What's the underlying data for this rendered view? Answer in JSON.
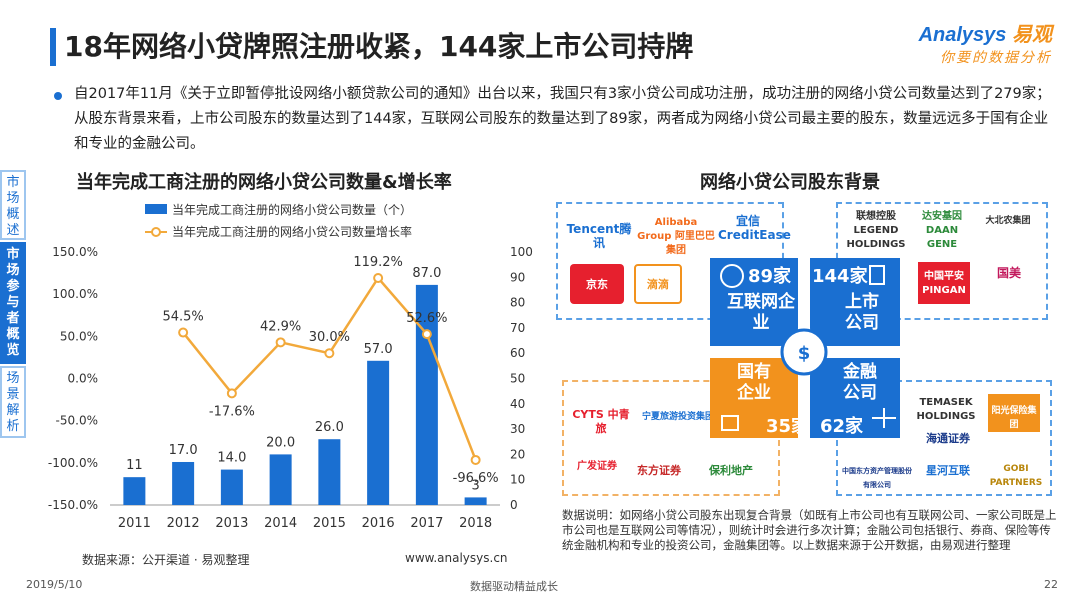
{
  "page": {
    "title": "18年网络小贷牌照注册收紧，144家上市公司持牌",
    "logo_main": "Analysys",
    "logo_cn": "易观",
    "logo_slogan": "你要的数据分析",
    "intro": "自2017年11月《关于立即暂停批设网络小额贷款公司的通知》出台以来，我国只有3家小贷公司成功注册，成功注册的网络小贷公司数量达到了279家；从股东背景来看，上市公司股东的数量达到了144家，互联网公司股东的数量达到了89家，两者成为网络小贷公司最主要的股东，数量远远多于国有企业和专业的金融公司。",
    "side_tabs": [
      "市场概述",
      "市场参与者概览",
      "场景解析"
    ],
    "source": "数据来源：公开渠道 · 易观整理",
    "url": "www.analysys.cn",
    "date": "2019/5/10",
    "footer_center": "数据驱动精益成长",
    "page_number": "22"
  },
  "chart_data": {
    "type": "bar",
    "title": "当年完成工商注册的网络小贷公司数量&增长率",
    "categories": [
      "2011",
      "2012",
      "2013",
      "2014",
      "2015",
      "2016",
      "2017",
      "2018"
    ],
    "series": [
      {
        "name": "当年完成工商注册的网络小贷公司数量（个）",
        "type": "bar",
        "axis": "right",
        "values": [
          11,
          17,
          14,
          20,
          26,
          57,
          87,
          3
        ],
        "labels": [
          "11",
          "17.0",
          "14.0",
          "20.0",
          "26.0",
          "57.0",
          "87.0",
          "3"
        ]
      },
      {
        "name": "当年完成工商注册的网络小贷公司数量增长率",
        "type": "line",
        "axis": "left",
        "values": [
          null,
          54.5,
          -17.6,
          42.9,
          30.0,
          119.2,
          52.6,
          -96.6
        ],
        "labels": [
          "",
          "54.5%",
          "-17.6%",
          "42.9%",
          "30.0%",
          "119.2%",
          "52.6%",
          "-96.6%"
        ]
      }
    ],
    "left_axis": {
      "min": -150,
      "max": 150,
      "ticks": [
        "-150.0%",
        "-100.0%",
        "-50.0%",
        "0.0%",
        "50.0%",
        "100.0%",
        "150.0%"
      ]
    },
    "right_axis": {
      "min": 0,
      "max": 100,
      "ticks": [
        "0",
        "10",
        "20",
        "30",
        "40",
        "50",
        "60",
        "70",
        "80",
        "90",
        "100"
      ]
    },
    "colors": {
      "bar": "#1a6fd1",
      "line": "#f2a93b"
    }
  },
  "shareholders": {
    "title": "网络小贷公司股东背景",
    "internet": {
      "count": "89家",
      "label": "互联网企业",
      "companies": [
        "Tencent腾讯",
        "Alibaba Group 阿里巴巴集团",
        "宜信 CreditEase",
        "京东",
        "滴滴"
      ]
    },
    "listed": {
      "count": "144家",
      "label": "上市公司",
      "companies": [
        "联想控股 LEGEND HOLDINGS",
        "达安基因 DAAN GENE",
        "大北农集团",
        "中国平安 PINGAN",
        "国美"
      ]
    },
    "state": {
      "count": "35家",
      "label": "国有企业",
      "companies": [
        "CYTS 中青旅",
        "宁夏旅游投资集团",
        "广发证券",
        "东方证券",
        "保利地产"
      ]
    },
    "finance": {
      "count": "62家",
      "label": "金融公司",
      "companies": [
        "中国东方资产管理股份有限公司",
        "TEMASEK HOLDINGS",
        "阳光保险集团",
        "海通证券",
        "星河互联",
        "GOBI PARTNERS"
      ]
    },
    "colors": {
      "internet": "#1a6fd1",
      "listed": "#1a6fd1",
      "state": "#f2921d",
      "finance": "#1a6fd1"
    },
    "note": "数据说明：如网络小贷公司股东出现复合背景（如既有上市公司也有互联网公司、一家公司既是上市公司也是互联网公司等情况），则统计时会进行多次计算；金融公司包括银行、券商、保险等传统金融机构和专业的投资公司，金融集团等。以上数据来源于公开数据，由易观进行整理"
  }
}
